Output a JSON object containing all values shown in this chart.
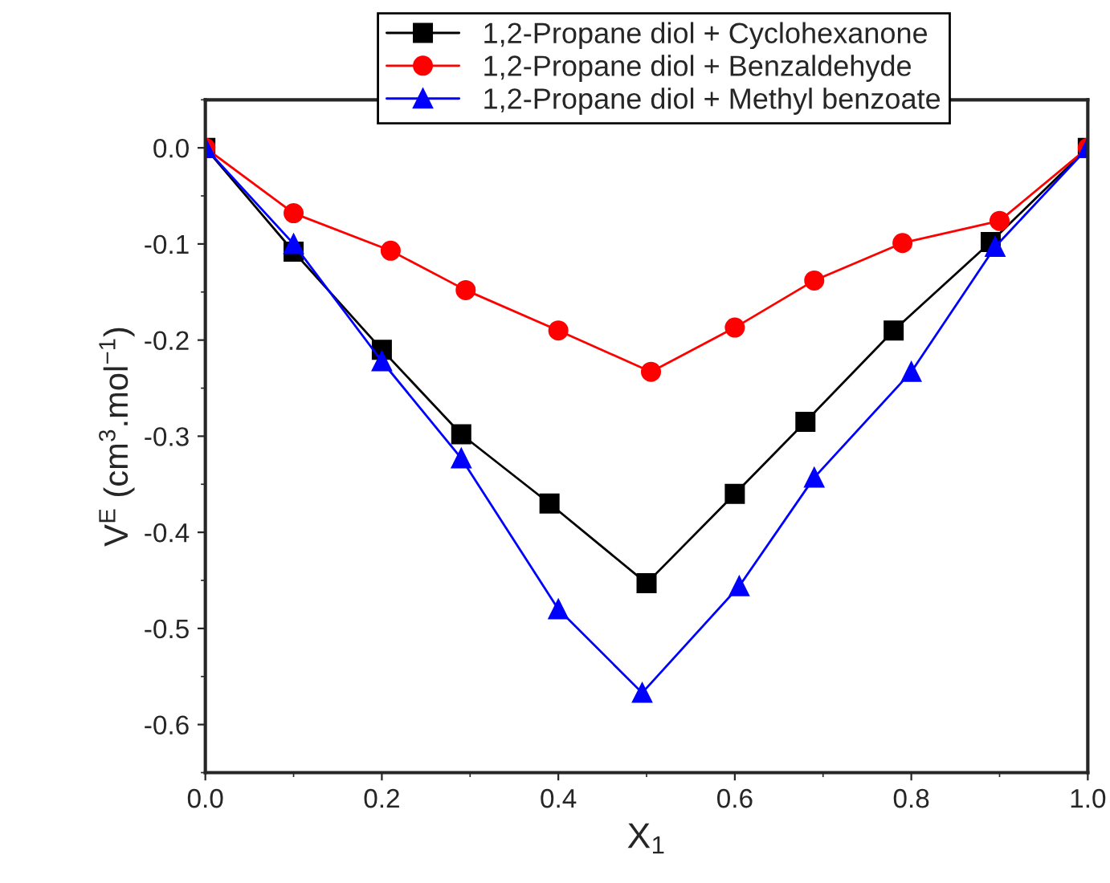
{
  "chart_data": {
    "type": "line",
    "xlabel": "X$_{1}$",
    "ylabel": "V$^{E}$ (cm$^{3}$.mol$^{−1}$)",
    "xlim": [
      0,
      1
    ],
    "xticks": [
      {
        "value": 0,
        "label": "0.0"
      },
      0.2,
      0.4,
      0.6,
      0.8,
      {
        "value": 1,
        "label": "1.0"
      }
    ],
    "ylim": [
      -0.65,
      0.05
    ],
    "yticks": [
      {
        "value": 0,
        "label": "0.0"
      },
      -0.1,
      -0.2,
      -0.3,
      -0.4,
      -0.5,
      -0.6
    ],
    "line_style": "solid",
    "grid": false,
    "legend": "top right",
    "series": [
      {
        "name": "1,2-Propane diol + Cyclohexanone",
        "color": "#000000",
        "marker": "square",
        "x": [
          0,
          0.1,
          0.2,
          0.29,
          0.39,
          0.5,
          0.6,
          0.68,
          0.78,
          0.89,
          1.0
        ],
        "values": [
          0,
          -0.108,
          -0.21,
          -0.298,
          -0.37,
          -0.453,
          -0.36,
          -0.285,
          -0.19,
          -0.098,
          0
        ]
      },
      {
        "name": "1,2-Propane diol + Benzaldehyde",
        "color": "#ff0000",
        "marker": "circle",
        "x": [
          0,
          0.1,
          0.21,
          0.295,
          0.4,
          0.505,
          0.6,
          0.69,
          0.79,
          0.9,
          1.0
        ],
        "values": [
          0,
          -0.068,
          -0.107,
          -0.148,
          -0.19,
          -0.233,
          -0.187,
          -0.138,
          -0.099,
          -0.076,
          0
        ]
      },
      {
        "name": "1,2-Propane diol + Methyl benzoate",
        "color": "#0000ff",
        "marker": "triangle",
        "x": [
          0,
          0.1,
          0.2,
          0.29,
          0.4,
          0.495,
          0.605,
          0.69,
          0.8,
          0.895,
          1.0
        ],
        "values": [
          0,
          -0.1,
          -0.222,
          -0.323,
          -0.48,
          -0.567,
          -0.456,
          -0.343,
          -0.233,
          -0.103,
          0
        ]
      }
    ]
  }
}
